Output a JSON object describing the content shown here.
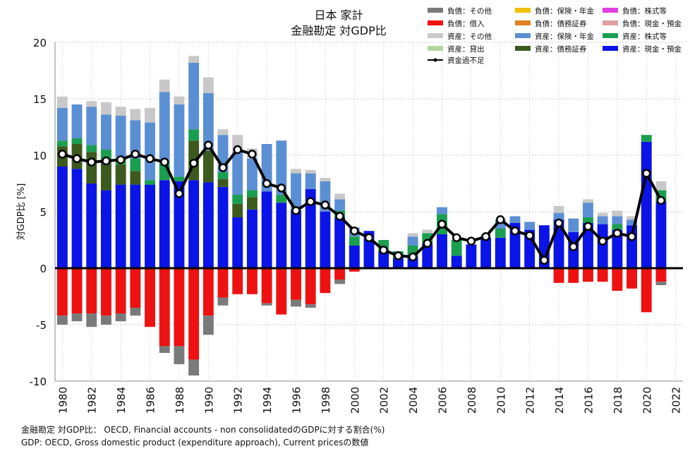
{
  "chart_data": {
    "type": "bar",
    "title": "日本 家計",
    "subtitle": "金融勘定 対GDP比",
    "ylabel": "対GDP比 [%]",
    "xlabel": "",
    "ylim": [
      -10,
      20
    ],
    "yticks": [
      -10,
      -5,
      0,
      5,
      10,
      15,
      20
    ],
    "xlim": [
      1979.5,
      2022.5
    ],
    "xticks": [
      "1980",
      "1982",
      "1984",
      "1986",
      "1988",
      "1990",
      "1992",
      "1994",
      "1996",
      "1998",
      "2000",
      "2002",
      "2004",
      "2006",
      "2008",
      "2010",
      "2012",
      "2014",
      "2016",
      "2018",
      "2020",
      "2022"
    ],
    "grid": true,
    "legend_position": "top-right",
    "categories": [
      1980,
      1981,
      1982,
      1983,
      1984,
      1985,
      1986,
      1987,
      1988,
      1989,
      1990,
      1991,
      1992,
      1993,
      1994,
      1995,
      1996,
      1997,
      1998,
      1999,
      2000,
      2001,
      2002,
      2003,
      2004,
      2005,
      2006,
      2007,
      2008,
      2009,
      2010,
      2011,
      2012,
      2013,
      2014,
      2015,
      2016,
      2017,
      2018,
      2019,
      2020,
      2021
    ],
    "series": [
      {
        "name": "資産：現金・預金",
        "color": "#0a14e6",
        "values": [
          9.0,
          8.8,
          7.5,
          6.9,
          7.4,
          7.4,
          7.4,
          7.8,
          7.7,
          7.8,
          7.6,
          7.2,
          4.5,
          5.2,
          6.8,
          5.8,
          5.1,
          7.0,
          5.0,
          4.5,
          2.0,
          3.3,
          1.5,
          0.9,
          1.0,
          2.2,
          3.0,
          1.1,
          2.1,
          2.7,
          2.7,
          4.0,
          3.4,
          3.8,
          4.3,
          3.2,
          4.0,
          3.9,
          3.4,
          3.8,
          11.2,
          5.9
        ]
      },
      {
        "name": "資産：債務証券",
        "color": "#3d5a1e",
        "values": [
          1.8,
          2.2,
          2.8,
          2.7,
          1.8,
          1.2,
          0,
          0,
          0,
          3.5,
          2.8,
          0.7,
          1.2,
          1.1,
          0,
          0,
          0,
          0,
          0,
          0,
          0,
          0,
          0,
          0,
          0,
          0,
          0,
          0,
          0,
          0,
          0,
          0,
          0,
          0,
          0,
          0,
          0,
          0,
          0,
          0,
          0,
          0
        ]
      },
      {
        "name": "資産：株式等",
        "color": "#1a9e50",
        "values": [
          0.5,
          0.5,
          0.6,
          0.9,
          0.6,
          1.1,
          0.4,
          1.5,
          0.4,
          1.0,
          0,
          0.6,
          0.8,
          0.6,
          0,
          0.7,
          0,
          0,
          0,
          0.6,
          0.8,
          0,
          1.0,
          0.6,
          1.0,
          0.9,
          1.8,
          1.4,
          0,
          0,
          0.8,
          0,
          0,
          0,
          0,
          0,
          0.5,
          0,
          0.5,
          0,
          0.6,
          1.0
        ]
      },
      {
        "name": "資産：保険・年金",
        "color": "#5b8fd4",
        "values": [
          2.9,
          3.0,
          3.4,
          3.1,
          3.7,
          3.4,
          5.1,
          6.3,
          6.4,
          5.9,
          5.1,
          3.3,
          3.8,
          2.8,
          4.2,
          4.8,
          3.3,
          1.4,
          2.7,
          1.0,
          0.8,
          0,
          0,
          0,
          0.8,
          0,
          0.6,
          0,
          0,
          0,
          0.8,
          0.6,
          0.7,
          0,
          0.6,
          1.2,
          1.3,
          0.7,
          0.7,
          0.5,
          0,
          0
        ]
      },
      {
        "name": "資産：その他",
        "color": "#c8c8c8",
        "values": [
          1.0,
          0,
          0.5,
          1.1,
          0.8,
          1.0,
          1.3,
          1.1,
          0.7,
          0.6,
          1.4,
          0.5,
          1.5,
          0.9,
          0,
          0,
          0.4,
          0.3,
          0.3,
          0.5,
          0,
          0,
          0,
          0,
          0.3,
          0.3,
          0,
          0,
          0,
          0.3,
          0,
          0,
          0,
          0,
          0.6,
          0,
          0.3,
          0.3,
          0.5,
          0.3,
          0,
          0.8
        ]
      },
      {
        "name": "資産：貸出",
        "color": "#b5d6a0",
        "values": [
          0,
          0,
          0,
          0,
          0,
          0,
          0,
          0,
          0,
          0,
          0,
          0,
          0,
          0,
          0,
          0,
          0,
          0,
          0,
          0,
          0,
          0,
          0,
          0,
          0,
          0,
          0,
          0,
          0,
          0,
          0,
          0,
          0,
          0,
          0,
          0,
          0,
          0,
          0,
          0,
          0,
          0
        ]
      },
      {
        "name": "負債：借入",
        "color": "#ee1111",
        "values": [
          -4.2,
          -4.0,
          -4.0,
          -4.2,
          -4.0,
          -3.5,
          -5.2,
          -6.9,
          -6.9,
          -8.1,
          -4.2,
          -2.6,
          -2.3,
          -2.3,
          -3.1,
          -4.1,
          -2.8,
          -3.2,
          -2.2,
          -1.0,
          -0.3,
          0,
          0,
          0,
          0,
          0,
          0,
          0,
          0,
          0,
          0,
          0,
          0,
          0,
          -1.3,
          -1.3,
          -1.2,
          -1.2,
          -2.0,
          -1.8,
          -3.9,
          -1.2
        ]
      },
      {
        "name": "負債：その他",
        "color": "#7a7a7a",
        "values": [
          -0.8,
          -0.7,
          -1.2,
          -0.8,
          -0.7,
          -0.7,
          0,
          -0.6,
          -1.6,
          -1.4,
          -1.7,
          -0.7,
          0,
          0,
          -0.2,
          0,
          -0.6,
          -0.3,
          0,
          -0.4,
          0,
          0,
          0,
          0,
          0,
          0,
          0,
          0,
          0,
          0,
          0,
          0,
          0,
          0,
          0,
          0,
          0,
          0,
          0,
          0,
          0,
          -0.3
        ]
      },
      {
        "name": "負債：保険・年金",
        "color": "#f0c000",
        "values": [
          0,
          0,
          0,
          0,
          0,
          0,
          0,
          0,
          0,
          0,
          0,
          0,
          0,
          0,
          0,
          0,
          0,
          0,
          0,
          0,
          0,
          0,
          0,
          0,
          0,
          0,
          0,
          0,
          0,
          0,
          0,
          0,
          0,
          0,
          0,
          0,
          0,
          0,
          0,
          0,
          0,
          0
        ]
      },
      {
        "name": "負債：債務証券",
        "color": "#e08020",
        "values": [
          0,
          0,
          0,
          0,
          0,
          0,
          0,
          0,
          0,
          0,
          0,
          0,
          0,
          0,
          0,
          0,
          0,
          0,
          0,
          0,
          0,
          0,
          0,
          0,
          0,
          0,
          0,
          0,
          0,
          0,
          0,
          0,
          0,
          0,
          0,
          0,
          0,
          0,
          0,
          0,
          0,
          0
        ]
      },
      {
        "name": "負債：株式等",
        "color": "#e040e0",
        "values": [
          0,
          0,
          0,
          0,
          0,
          0,
          0,
          0,
          0,
          0,
          0,
          0,
          0,
          0,
          0,
          0,
          0,
          0,
          0,
          0,
          0,
          0,
          0,
          0,
          0,
          0,
          0,
          0,
          0,
          0,
          0,
          0,
          0,
          0,
          0,
          0,
          0,
          0,
          0,
          0,
          0,
          0
        ]
      },
      {
        "name": "負債：現金・預金",
        "color": "#e0a0a0",
        "values": [
          0,
          0,
          0,
          0,
          0,
          0,
          0,
          0,
          0,
          0,
          0,
          0,
          0,
          0,
          0,
          0,
          0,
          0,
          0,
          0,
          0,
          0,
          0,
          0,
          0,
          0,
          0,
          0,
          0,
          0,
          0,
          0,
          0,
          0,
          0,
          0,
          0,
          0,
          0,
          0,
          0,
          0
        ]
      }
    ],
    "line": {
      "name": "資金過不足",
      "color": "#000000",
      "values": [
        10.1,
        9.7,
        9.4,
        9.5,
        9.6,
        10.1,
        9.7,
        9.4,
        6.6,
        9.3,
        10.9,
        8.9,
        10.5,
        10.1,
        7.5,
        7.1,
        5.1,
        5.9,
        5.6,
        4.6,
        3.3,
        2.7,
        1.6,
        1.1,
        1.0,
        2.2,
        3.9,
        2.7,
        2.4,
        2.8,
        4.3,
        3.3,
        2.9,
        0.7,
        4.0,
        1.9,
        3.7,
        2.4,
        3.1,
        2.8,
        8.4,
        6.0
      ]
    },
    "notes": [
      "金融勘定 対GDP比： OECD, Financial accounts - non consolidatedのGDPに対する割合(%)",
      "GDP: OECD, Gross domestic product (expenditure approach), Current pricesの数値"
    ]
  }
}
